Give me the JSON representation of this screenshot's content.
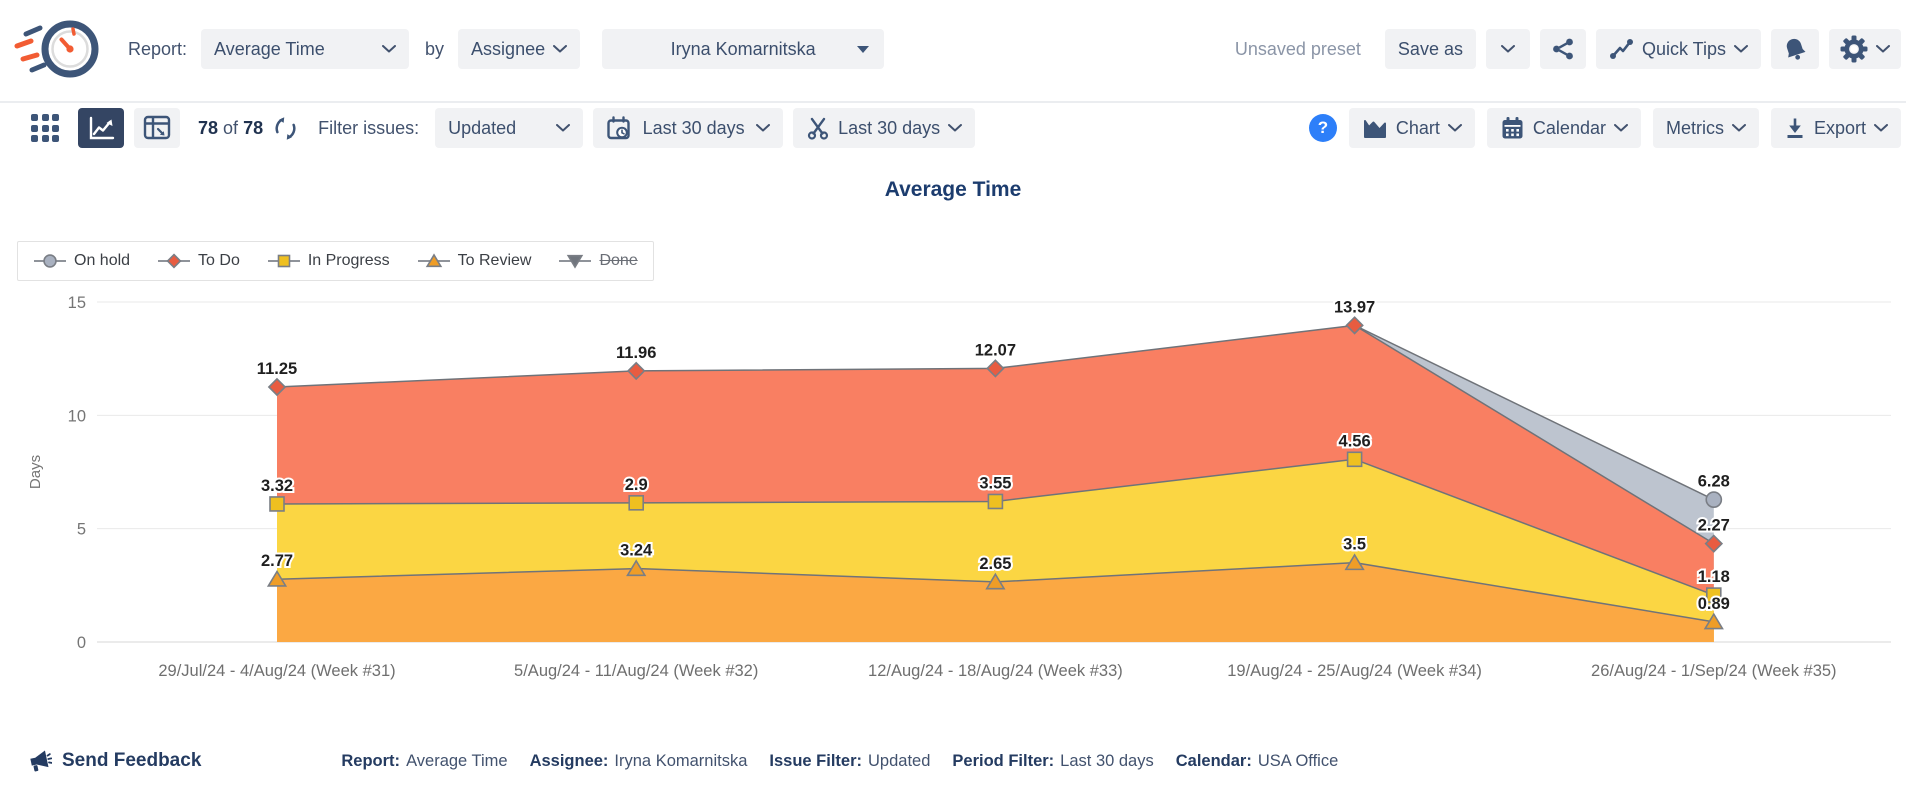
{
  "header": {
    "report_label": "Report:",
    "report_type": "Average Time",
    "by_label": "by",
    "group_by": "Assignee",
    "assignee": "Iryna Komarnitska",
    "unsaved_preset": "Unsaved preset",
    "save_as_label": "Save as",
    "quick_tips_label": "Quick Tips"
  },
  "toolbar": {
    "count": {
      "current": "78",
      "of_label": "of",
      "total": "78"
    },
    "filter_issues_label": "Filter issues:",
    "issue_filter": "Updated",
    "period_filter": "Last 30 days",
    "trim_filter": "Last 30 days",
    "help_label": "?",
    "chart_menu": "Chart",
    "calendar_menu": "Calendar",
    "metrics_menu": "Metrics",
    "export_menu": "Export"
  },
  "chart_data": {
    "type": "area",
    "title": "Average Time",
    "ylabel": "Days",
    "ylim": [
      0,
      15
    ],
    "yticks": [
      0,
      5,
      10,
      15
    ],
    "grid": true,
    "legend_position": "top-left",
    "stacking_note": "To Review is the base; In Progress markers sit at To Review + In Progress; plot = y-position as rendered, values = labeled data",
    "categories": [
      "29/Jul/24 - 4/Aug/24 (Week #31)",
      "5/Aug/24 - 11/Aug/24 (Week #32)",
      "12/Aug/24 - 18/Aug/24 (Week #33)",
      "19/Aug/24 - 25/Aug/24 (Week #34)",
      "26/Aug/24 - 1/Sep/24 (Week #35)"
    ],
    "series": [
      {
        "name": "On hold",
        "marker": "circle",
        "color": "#bdc4cf",
        "marker_color": "#a9b1c0",
        "values": [
          null,
          null,
          null,
          null,
          6.28
        ],
        "plot": [
          null,
          null,
          null,
          13.97,
          6.28
        ],
        "disabled": false
      },
      {
        "name": "To Do",
        "marker": "diamond",
        "color": "#f97f62",
        "marker_color": "#e85c41",
        "values": [
          11.25,
          11.96,
          12.07,
          13.97,
          2.27
        ],
        "plot": [
          11.25,
          11.96,
          12.07,
          13.97,
          4.34
        ],
        "disabled": false
      },
      {
        "name": "In Progress",
        "marker": "square",
        "color": "#fbd643",
        "marker_color": "#efc020",
        "values": [
          3.32,
          2.9,
          3.55,
          4.56,
          1.18
        ],
        "plot": [
          6.09,
          6.14,
          6.2,
          8.06,
          2.07
        ],
        "disabled": false
      },
      {
        "name": "To Review",
        "marker": "triangle",
        "color": "#fba843",
        "marker_color": "#ef9d27",
        "values": [
          2.77,
          3.24,
          2.65,
          3.5,
          0.89
        ],
        "plot": [
          2.77,
          3.24,
          2.65,
          3.5,
          0.89
        ],
        "disabled": false
      },
      {
        "name": "Done",
        "marker": "triangle-down",
        "color": "#70757d",
        "marker_color": "#70757d",
        "values": [
          null,
          null,
          null,
          null,
          null
        ],
        "plot": [
          null,
          null,
          null,
          null,
          null
        ],
        "disabled": true
      }
    ]
  },
  "footer": {
    "send_feedback": "Send Feedback",
    "items": [
      {
        "label": "Report:",
        "value": "Average Time"
      },
      {
        "label": "Assignee:",
        "value": "Iryna Komarnitska"
      },
      {
        "label": "Issue Filter:",
        "value": "Updated"
      },
      {
        "label": "Period Filter:",
        "value": "Last 30 days"
      },
      {
        "label": "Calendar:",
        "value": "USA Office"
      }
    ]
  },
  "colors": {
    "navy_icon": "#3d5578",
    "text_navy": "#42526e",
    "accent_blue": "#2d7ff9",
    "button_bg": "#f1f2f4",
    "title_blue": "#1c3c6e",
    "line_stroke": "#6f7379"
  }
}
